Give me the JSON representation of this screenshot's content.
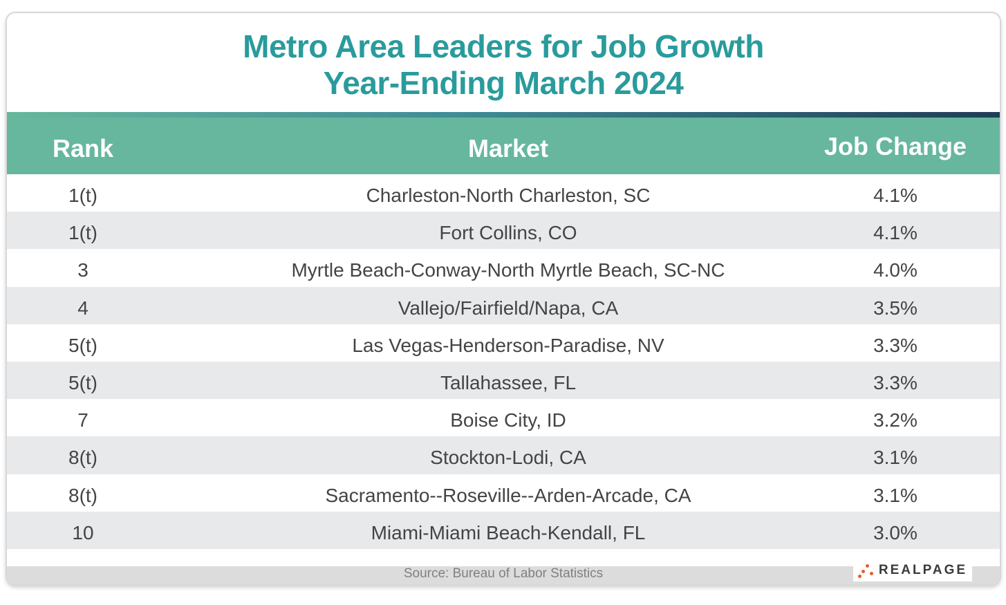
{
  "title_line1": "Metro Area Leaders for Job Growth",
  "title_line2": "Year-Ending March 2024",
  "colors": {
    "title": "#2a9b9c",
    "header_bg": "#66b79e",
    "row_alt": "#e8e9eb",
    "logo_dots": "#ec5c2b"
  },
  "source": "Source: Bureau of Labor Statistics",
  "logo_text": "REALPAGE",
  "chart_data": {
    "type": "table",
    "columns": [
      "Rank",
      "Market",
      "Job Change"
    ],
    "rows": [
      [
        "1(t)",
        "Charleston-North Charleston, SC",
        "4.1%"
      ],
      [
        "1(t)",
        "Fort Collins, CO",
        "4.1%"
      ],
      [
        "3",
        "Myrtle Beach-Conway-North Myrtle Beach, SC-NC",
        "4.0%"
      ],
      [
        "4",
        "Vallejo/Fairfield/Napa, CA",
        "3.5%"
      ],
      [
        "5(t)",
        "Las Vegas-Henderson-Paradise, NV",
        "3.3%"
      ],
      [
        "5(t)",
        "Tallahassee, FL",
        "3.3%"
      ],
      [
        "7",
        "Boise City, ID",
        "3.2%"
      ],
      [
        "8(t)",
        "Stockton-Lodi, CA",
        "3.1%"
      ],
      [
        "8(t)",
        "Sacramento--Roseville--Arden-Arcade, CA",
        "3.1%"
      ],
      [
        "10",
        "Miami-Miami Beach-Kendall, FL",
        "3.0%"
      ]
    ]
  }
}
